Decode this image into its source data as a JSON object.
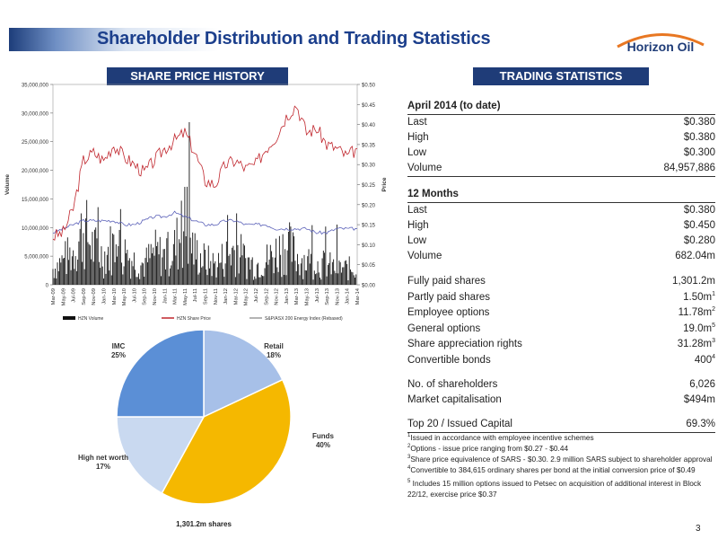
{
  "title": "Shareholder Distribution and Trading Statistics",
  "logo_text": "Horizon Oil",
  "page_number": "3",
  "colors": {
    "navy": "#1f3c78",
    "title": "#1c3f8c",
    "logo_orange": "#e87722",
    "price_line": "#c0262d",
    "index_line": "#5a60b8",
    "pie_blue": "#5b8fd6",
    "pie_light": "#a7c0e8",
    "pie_gold": "#f5b800",
    "pie_pale": "#c9d9f0"
  },
  "left_header": "SHARE PRICE HISTORY",
  "right_header": "TRADING STATISTICS",
  "chart_data": [
    {
      "type": "line",
      "title": "",
      "ylabel_left": "Volume",
      "ylabel_right": "Price",
      "y_left_ticks": [
        "35,000,000",
        "30,000,000",
        "25,000,000",
        "20,000,000",
        "15,000,000",
        "10,000,000",
        "5,000,000",
        "0"
      ],
      "y_left_lim": [
        0,
        35000000
      ],
      "y_right_ticks": [
        "$0.50",
        "$0.45",
        "$0.40",
        "$0.35",
        "$0.30",
        "$0.25",
        "$0.20",
        "$0.15",
        "$0.10",
        "$0.05",
        "$0.00"
      ],
      "y_right_lim": [
        0,
        0.5
      ],
      "x_ticks": [
        "Mar-09",
        "May-09",
        "Jul-09",
        "Sep-09",
        "Nov-09",
        "Jan-10",
        "Mar-10",
        "May-10",
        "Jul-10",
        "Sep-10",
        "Nov-10",
        "Jan-11",
        "Mar-11",
        "May-11",
        "Jul-11",
        "Sep-11",
        "Nov-11",
        "Jan-12",
        "Mar-12",
        "May-12",
        "Jul-12",
        "Sep-12",
        "Nov-12",
        "Jan-13",
        "Mar-13",
        "May-13",
        "Jul-13",
        "Sep-13",
        "Nov-13",
        "Jan-14",
        "Mar-14"
      ],
      "legend": [
        "HZN Volume",
        "HZN Share Price",
        "S&P/ASX 200 Energy Index (Rebased)"
      ],
      "legend_position": "bottom",
      "series": [
        {
          "name": "HZN Share Price",
          "axis": "right",
          "values": [
            0.12,
            0.13,
            0.19,
            0.31,
            0.33,
            0.31,
            0.35,
            0.32,
            0.3,
            0.28,
            0.31,
            0.34,
            0.36,
            0.38,
            0.33,
            0.26,
            0.25,
            0.3,
            0.31,
            0.29,
            0.3,
            0.34,
            0.37,
            0.42,
            0.45,
            0.38,
            0.39,
            0.35,
            0.34,
            0.32,
            0.34
          ]
        },
        {
          "name": "S&P/ASX 200 Energy Index (Rebased)",
          "axis": "right",
          "values": [
            0.13,
            0.14,
            0.15,
            0.16,
            0.16,
            0.16,
            0.16,
            0.15,
            0.15,
            0.16,
            0.17,
            0.17,
            0.18,
            0.17,
            0.16,
            0.15,
            0.15,
            0.16,
            0.16,
            0.15,
            0.15,
            0.15,
            0.14,
            0.14,
            0.14,
            0.14,
            0.13,
            0.13,
            0.14,
            0.14,
            0.14
          ]
        },
        {
          "name": "HZN Volume",
          "axis": "left",
          "type": "bar",
          "values": [
            4000000,
            6000000,
            8000000,
            14000000,
            9000000,
            7000000,
            10000000,
            8000000,
            6000000,
            5000000,
            8000000,
            7000000,
            9000000,
            15000000,
            8000000,
            6000000,
            5000000,
            7000000,
            9000000,
            6000000,
            5000000,
            6000000,
            8000000,
            10000000,
            7000000,
            6000000,
            5000000,
            5000000,
            4000000,
            4000000,
            4000000
          ]
        }
      ]
    },
    {
      "type": "pie",
      "title": "",
      "caption": "1,301.2m shares",
      "slices": [
        {
          "label": "Retail",
          "value": 18,
          "display": "18%",
          "color": "#a7c0e8"
        },
        {
          "label": "Funds",
          "value": 40,
          "display": "40%",
          "color": "#f5b800"
        },
        {
          "label": "High net worth",
          "value": 17,
          "display": "17%",
          "color": "#c9d9f0"
        },
        {
          "label": "IMC",
          "value": 25,
          "display": "25%",
          "color": "#5b8fd6"
        }
      ]
    }
  ],
  "stats": {
    "april_label": "April 2014 (to date)",
    "april_rows": [
      {
        "label": "Last",
        "value": "$0.380"
      },
      {
        "label": "High",
        "value": "$0.380"
      },
      {
        "label": "Low",
        "value": "$0.300"
      },
      {
        "label": "Volume",
        "value": "84,957,886"
      }
    ],
    "months_label": "12 Months",
    "months_rows": [
      {
        "label": "Last",
        "value": "$0.380"
      },
      {
        "label": "High",
        "value": "$0.450"
      },
      {
        "label": "Low",
        "value": "$0.280"
      },
      {
        "label": "Volume",
        "value": "682.04m"
      }
    ],
    "share_rows": [
      {
        "label": "Fully paid shares",
        "value": "1,301.2m",
        "sup": ""
      },
      {
        "label": "Partly paid shares",
        "value": "1.50m",
        "sup": "1"
      },
      {
        "label": "Employee options",
        "value": "11.78m",
        "sup": "2"
      },
      {
        "label": "General options",
        "value": "19.0m",
        "sup": "5"
      },
      {
        "label": "Share appreciation rights",
        "value": "31.28m",
        "sup": "3"
      },
      {
        "label": "Convertible bonds",
        "value": "400",
        "sup": "4"
      }
    ],
    "holder_rows": [
      {
        "label": "No. of shareholders",
        "value": "6,026"
      },
      {
        "label": "Market capitalisation",
        "value": "$494m"
      }
    ],
    "top20_label": "Top 20 / Issued Capital",
    "top20_value": "69.3%"
  },
  "footnotes": [
    {
      "num": "1",
      "text": "Issued in accordance with employee incentive schemes"
    },
    {
      "num": "2",
      "text": "Options - issue price ranging from $0.27 - $0.44"
    },
    {
      "num": "3",
      "text": "Share price equivalence of SARS - $0.30. 2.9 million SARS subject to shareholder approval"
    },
    {
      "num": "4",
      "text": "Convertible to 384,615 ordinary shares per bond at the initial conversion price of $0.49"
    },
    {
      "num": "5",
      "text": " Includes 15 million options issued to Petsec on acquisition of additional interest in Block 22/12, exercise price $0.37"
    }
  ]
}
